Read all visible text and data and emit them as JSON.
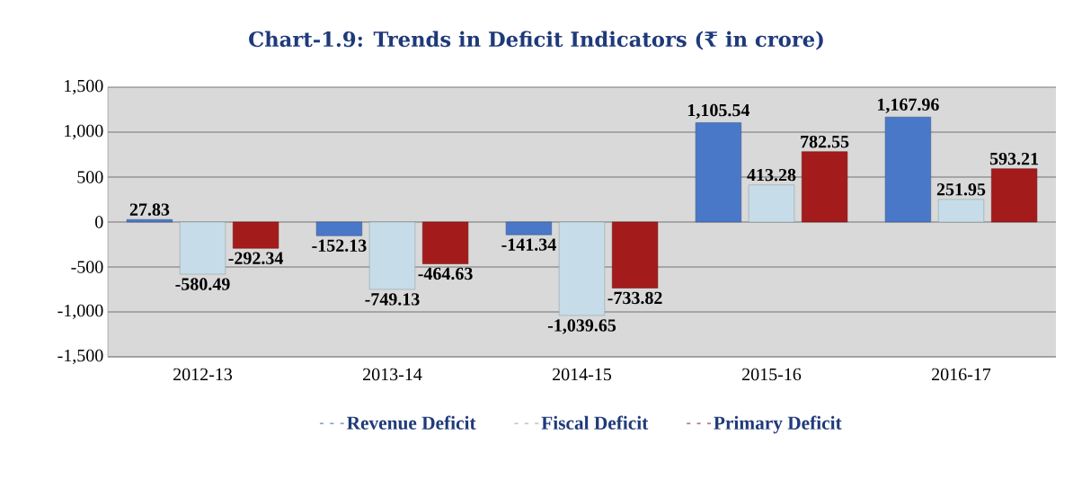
{
  "chart_data": {
    "type": "bar",
    "title": "Chart-1.9: Trends in Deficit Indicators (₹ in crore)",
    "categories": [
      "2012-13",
      "2013-14",
      "2014-15",
      "2015-16",
      "2016-17"
    ],
    "series": [
      {
        "name": "Revenue Deficit",
        "color": "#4a78c8",
        "values": [
          27.83,
          -152.13,
          -141.34,
          1105.54,
          1167.96
        ],
        "value_labels": [
          "27.83",
          "-152.13",
          "-141.34",
          "1,105.54",
          "1,167.96"
        ]
      },
      {
        "name": "Fiscal Deficit",
        "color": "#c6dde9",
        "values": [
          -580.49,
          -749.13,
          -1039.65,
          413.28,
          251.95
        ],
        "value_labels": [
          "-580.49",
          "-749.13",
          "-1,039.65",
          "413.28",
          "251.95"
        ]
      },
      {
        "name": "Primary Deficit",
        "color": "#a31b1b",
        "values": [
          -292.34,
          -464.63,
          -733.82,
          782.55,
          593.21
        ],
        "value_labels": [
          "-292.34",
          "-464.63",
          "-733.82",
          "782.55",
          "593.21"
        ]
      }
    ],
    "ylim": [
      -1500,
      1500
    ],
    "yticks": [
      {
        "value": -1500,
        "label": "-1,500"
      },
      {
        "value": -1000,
        "label": "-1,000"
      },
      {
        "value": -500,
        "label": "-500"
      },
      0,
      500,
      {
        "value": 1000,
        "label": "1,000"
      },
      {
        "value": 1500,
        "label": "1,500"
      }
    ],
    "grid": "y",
    "legend": "bottom"
  }
}
